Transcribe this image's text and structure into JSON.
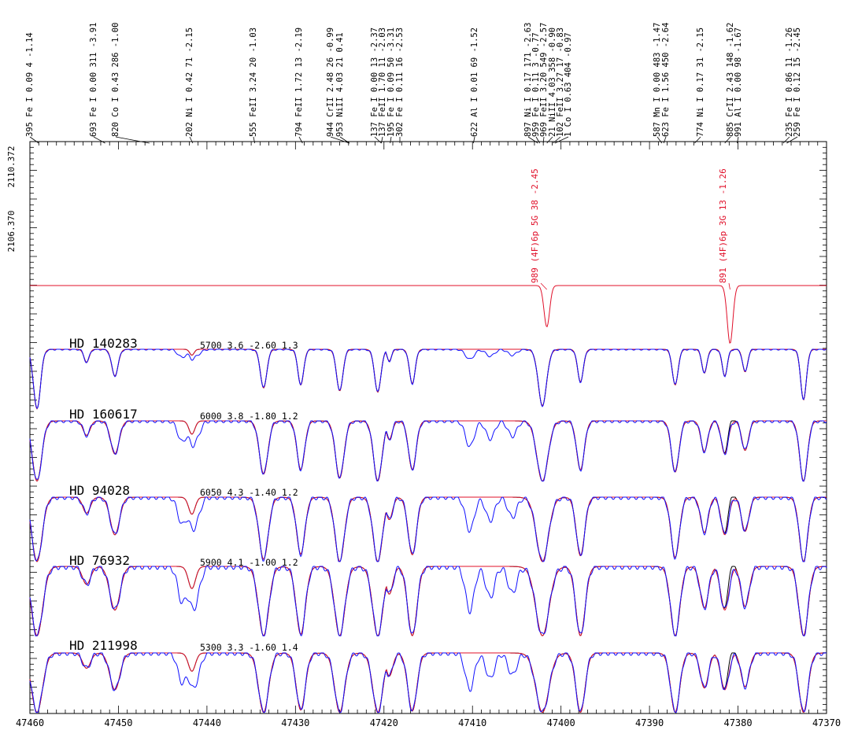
{
  "chart_data": {
    "type": "line",
    "x_axis": {
      "range": [
        47460,
        47370
      ],
      "ticks": [
        "47460",
        "47450",
        "47440",
        "47430",
        "47420",
        "47410",
        "47400",
        "47390",
        "47380",
        "47370"
      ]
    },
    "left_labels": [
      "2110.372",
      "2106.370"
    ],
    "line_list": [
      {
        "wl": "395",
        "ion": "Fe I",
        "ep": "0.09",
        "n": "4",
        "loggf": "-1.14"
      },
      {
        "wl": "693",
        "ion": "Fe I",
        "ep": "0.00",
        "n": "311",
        "loggf": "-3.91"
      },
      {
        "wl": "820",
        "ion": "Co I",
        "ep": "0.43",
        "n": "286",
        "loggf": "-1.00"
      },
      {
        "wl": "202",
        "ion": "Ni I",
        "ep": "0.42",
        "n": "71",
        "loggf": "-2.15"
      },
      {
        "wl": "555",
        "ion": "FeII",
        "ep": "3.24",
        "n": "20",
        "loggf": "-1.03"
      },
      {
        "wl": "794",
        "ion": "FeII",
        "ep": "1.72",
        "n": "13",
        "loggf": "-2.19"
      },
      {
        "wl": "944",
        "ion": "CrII",
        "ep": "2.48",
        "n": "26",
        "loggf": "-0.99"
      },
      {
        "wl": "953",
        "ion": "NiII",
        "ep": "4.03",
        "n": "21",
        "loggf": "0.41"
      },
      {
        "wl": "137",
        "ion": "Fe I",
        "ep": "0.00",
        "n": "13",
        "loggf": "-2.37"
      },
      {
        "wl": "137",
        "ion": "FeII",
        "ep": "1.70",
        "n": "11",
        "loggf": "-2.03"
      },
      {
        "wl": "195",
        "ion": "Fe I",
        "ep": "0.09",
        "n": "50",
        "loggf": "-3.31"
      },
      {
        "wl": "302",
        "ion": "Fe I",
        "ep": "0.11",
        "n": "16",
        "loggf": "-2.53"
      },
      {
        "wl": "622",
        "ion": "Al I",
        "ep": "0.01",
        "n": "69",
        "loggf": "-1.52"
      },
      {
        "wl": "897",
        "ion": "Ni I",
        "ep": "0.17",
        "n": "171",
        "loggf": "-2.63"
      },
      {
        "wl": "959",
        "ion": "Fe I",
        "ep": "0.11",
        "n": "3",
        "loggf": "-0.77"
      },
      {
        "wl": "969",
        "ion": "FeII",
        "ep": "3.20",
        "n": "549",
        "loggf": "-2.57"
      },
      {
        "wl": "21",
        "ion": "NiII",
        "ep": "4.03",
        "n": "358",
        "loggf": "-0.90"
      },
      {
        "wl": "102",
        "ion": "FeII",
        "ep": "3.27",
        "n": "17",
        "loggf": "-0.83"
      },
      {
        "wl": "1",
        "ion": "Co I",
        "ep": "0.63",
        "n": "404",
        "loggf": "-0.97"
      },
      {
        "wl": "587",
        "ion": "Mn I",
        "ep": "0.00",
        "n": "483",
        "loggf": "-1.47"
      },
      {
        "wl": "623",
        "ion": "Fe I",
        "ep": "1.56",
        "n": "450",
        "loggf": "-2.64"
      },
      {
        "wl": "774",
        "ion": "Ni I",
        "ep": "0.17",
        "n": "31",
        "loggf": "-2.15"
      },
      {
        "wl": "885",
        "ion": "CrII",
        "ep": "2.43",
        "n": "148",
        "loggf": "-1.62"
      },
      {
        "wl": "991",
        "ion": "Al I",
        "ep": "0.00",
        "n": "98",
        "loggf": "-1.67"
      },
      {
        "wl": "235",
        "ion": "Fe I",
        "ep": "0.86",
        "n": "11",
        "loggf": "-1.26"
      },
      {
        "wl": "259",
        "ion": "Fe I",
        "ep": "0.12",
        "n": "15",
        "loggf": "-2.45"
      }
    ],
    "red_annotations": [
      "989 (4F)6p 5G   38 -2.45",
      "891 (4F)6p 3G   13 -1.26"
    ],
    "stars": [
      {
        "name": "HD 140283",
        "params": "5700 3.6 -2.60 1.3"
      },
      {
        "name": "HD 160617",
        "params": "6000 3.8 -1.80 1.2"
      },
      {
        "name": "HD  94028",
        "params": "6050 4.3 -1.40 1.2"
      },
      {
        "name": "HD  76932",
        "params": "5900 4.1 -1.00 1.2"
      },
      {
        "name": "HD 211998",
        "params": "5300 3.3 -1.60 1.4"
      }
    ],
    "absorption_lines": [
      {
        "x": 47459.2,
        "w": 0.55,
        "d": 1.0,
        "k": 0.62
      },
      {
        "x": 47453.6,
        "w": 0.4,
        "d": 0.22,
        "k": 0.04
      },
      {
        "x": 47450.4,
        "w": 0.5,
        "d": 0.45,
        "k": 0.18
      },
      {
        "x": 47441.7,
        "w": 0.35,
        "d": 0.1,
        "k": 0.22
      },
      {
        "x": 47433.6,
        "w": 0.5,
        "d": 0.65,
        "k": 0.42
      },
      {
        "x": 47429.4,
        "w": 0.45,
        "d": 0.6,
        "k": 0.38
      },
      {
        "x": 47425.0,
        "w": 0.5,
        "d": 0.7,
        "k": 0.45
      },
      {
        "x": 47420.7,
        "w": 0.5,
        "d": 0.72,
        "k": 0.5
      },
      {
        "x": 47419.4,
        "w": 0.35,
        "d": 0.2,
        "k": 0.2
      },
      {
        "x": 47416.8,
        "w": 0.45,
        "d": 0.58,
        "k": 0.42
      },
      {
        "x": 47402.1,
        "w": 0.65,
        "d": 0.95,
        "k": 0.85
      },
      {
        "x": 47397.8,
        "w": 0.45,
        "d": 0.55,
        "k": 0.48
      },
      {
        "x": 47387.1,
        "w": 0.45,
        "d": 0.6,
        "k": 0.45
      },
      {
        "x": 47383.8,
        "w": 0.4,
        "d": 0.4,
        "k": 0.2
      },
      {
        "x": 47381.5,
        "w": 0.4,
        "d": 0.45,
        "k": 0.18
      },
      {
        "x": 47379.2,
        "w": 0.4,
        "d": 0.38,
        "k": 0.2
      },
      {
        "x": 47372.6,
        "w": 0.45,
        "d": 0.85,
        "k": 0.55
      }
    ],
    "red_lines": [
      {
        "x": 47401.6,
        "d": 0.3
      },
      {
        "x": 47380.9,
        "d": 0.42
      }
    ],
    "blue_extra_lines": [
      {
        "x": 47442.8,
        "d": 0.4
      },
      {
        "x": 47441.2,
        "d": 0.3
      },
      {
        "x": 47410.3,
        "d": 0.5
      },
      {
        "x": 47408.0,
        "d": 0.35
      },
      {
        "x": 47405.5,
        "d": 0.3
      }
    ],
    "colors": {
      "axis": "#000000",
      "text": "#000000",
      "observed": "#1010ff",
      "model": "#e0102a",
      "model_alt": "#000000",
      "red_label": "#e0102a"
    }
  }
}
